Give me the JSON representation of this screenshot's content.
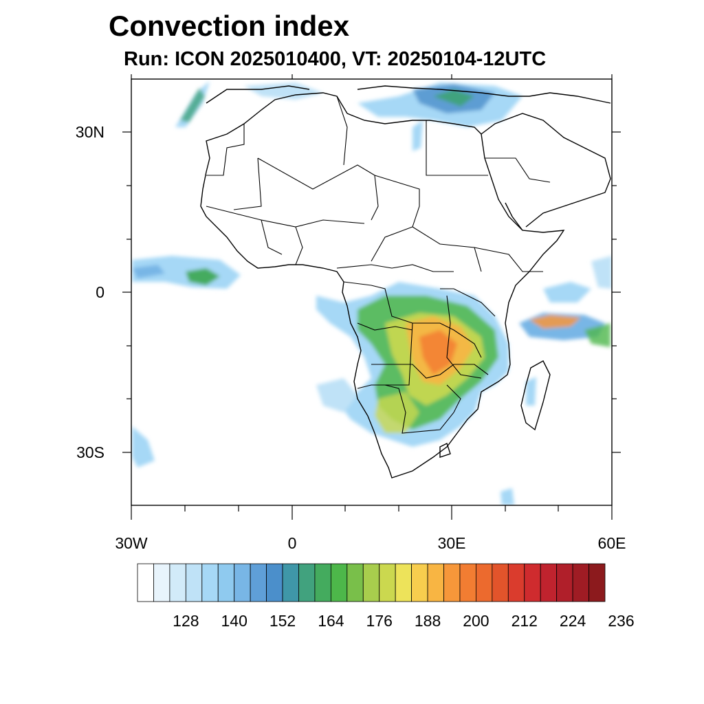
{
  "header": {
    "title": "Convection index",
    "subtitle": "Run: ICON 2025010400,  VT: 20250104-12UTC"
  },
  "map": {
    "lon_range": [
      -30,
      60
    ],
    "lat_range": [
      -40,
      40
    ],
    "lat_labels": [
      "30N",
      "0",
      "30S"
    ],
    "lon_labels": [
      "30W",
      "0",
      "30E",
      "60E"
    ]
  },
  "colorbar": {
    "colors": [
      "#ffffff",
      "#e8f4fc",
      "#d2ebf9",
      "#bfe2f7",
      "#a6d8f6",
      "#8fcaef",
      "#78b6e6",
      "#5f9fd8",
      "#4b8fcb",
      "#3f97a8",
      "#41a27e",
      "#44ab5e",
      "#4db74a",
      "#79bf4a",
      "#a8cd4d",
      "#cbd84f",
      "#ede35a",
      "#f7cd4e",
      "#f8b543",
      "#f6973a",
      "#f27d32",
      "#ec6a2e",
      "#e2542b",
      "#da3c2d",
      "#cf2b2e",
      "#c0232e",
      "#b01f2a",
      "#9f1c24",
      "#8c1a1d"
    ],
    "labels": [
      "128",
      "140",
      "152",
      "164",
      "176",
      "188",
      "200",
      "212",
      "224",
      "236"
    ]
  }
}
